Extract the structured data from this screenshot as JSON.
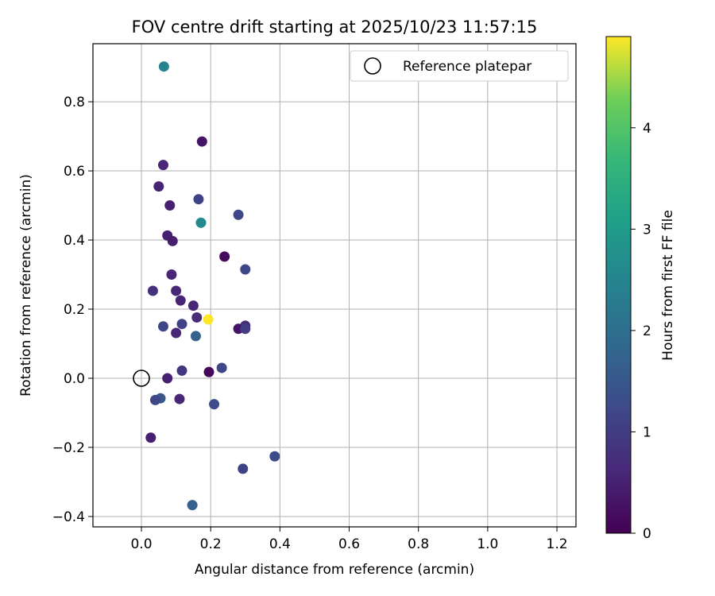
{
  "chart_data": {
    "type": "scatter",
    "title": "FOV centre drift starting at 2025/10/23 11:57:15",
    "xlabel": "Angular distance from reference (arcmin)",
    "ylabel": "Rotation from reference (arcmin)",
    "xlim": [
      -0.14,
      1.255
    ],
    "ylim": [
      -0.43,
      0.968
    ],
    "xticks": [
      0.0,
      0.2,
      0.4,
      0.6,
      0.8,
      1.0,
      1.2
    ],
    "xtick_labels": [
      "0.0",
      "0.2",
      "0.4",
      "0.6",
      "0.8",
      "1.0",
      "1.2"
    ],
    "yticks": [
      -0.4,
      -0.2,
      0.0,
      0.2,
      0.4,
      0.6,
      0.8
    ],
    "ytick_labels": [
      "−0.4",
      "−0.2",
      "0.0",
      "0.2",
      "0.4",
      "0.6",
      "0.8"
    ],
    "grid": true,
    "legend": {
      "location": "top-right",
      "entries": [
        "Reference platepar"
      ]
    },
    "reference_point": {
      "x": 0.0,
      "y": 0.0,
      "label": "Reference platepar"
    },
    "colorbar": {
      "label": "Hours from first FF file",
      "colormap": "viridis",
      "range": [
        0,
        4.9
      ],
      "ticks": [
        0,
        1,
        2,
        3,
        4
      ],
      "tick_labels": [
        "0",
        "1",
        "2",
        "3",
        "4"
      ]
    },
    "points": [
      {
        "x": 0.065,
        "y": 0.902,
        "c": 2.5
      },
      {
        "x": 0.175,
        "y": 0.685,
        "c": 0.3
      },
      {
        "x": 0.063,
        "y": 0.617,
        "c": 0.6
      },
      {
        "x": 0.05,
        "y": 0.555,
        "c": 0.55
      },
      {
        "x": 0.165,
        "y": 0.518,
        "c": 1.1
      },
      {
        "x": 0.082,
        "y": 0.5,
        "c": 0.5
      },
      {
        "x": 0.172,
        "y": 0.45,
        "c": 2.6
      },
      {
        "x": 0.28,
        "y": 0.473,
        "c": 1.2
      },
      {
        "x": 0.075,
        "y": 0.413,
        "c": 0.5
      },
      {
        "x": 0.09,
        "y": 0.397,
        "c": 0.45
      },
      {
        "x": 0.24,
        "y": 0.352,
        "c": 0.15
      },
      {
        "x": 0.3,
        "y": 0.315,
        "c": 1.2
      },
      {
        "x": 0.087,
        "y": 0.3,
        "c": 0.6
      },
      {
        "x": 0.033,
        "y": 0.253,
        "c": 0.8
      },
      {
        "x": 0.1,
        "y": 0.253,
        "c": 0.6
      },
      {
        "x": 0.113,
        "y": 0.225,
        "c": 0.55
      },
      {
        "x": 0.15,
        "y": 0.21,
        "c": 0.6
      },
      {
        "x": 0.16,
        "y": 0.176,
        "c": 0.7
      },
      {
        "x": 0.193,
        "y": 0.17,
        "c": 4.9
      },
      {
        "x": 0.063,
        "y": 0.15,
        "c": 1.2
      },
      {
        "x": 0.117,
        "y": 0.157,
        "c": 1.1
      },
      {
        "x": 0.3,
        "y": 0.152,
        "c": 0.7
      },
      {
        "x": 0.28,
        "y": 0.143,
        "c": 0.3
      },
      {
        "x": 0.3,
        "y": 0.143,
        "c": 1.0
      },
      {
        "x": 0.1,
        "y": 0.131,
        "c": 0.6
      },
      {
        "x": 0.157,
        "y": 0.122,
        "c": 1.7
      },
      {
        "x": 0.232,
        "y": 0.03,
        "c": 1.2
      },
      {
        "x": 0.117,
        "y": 0.022,
        "c": 0.9
      },
      {
        "x": 0.195,
        "y": 0.018,
        "c": 0.1
      },
      {
        "x": 0.075,
        "y": 0.0,
        "c": 0.5
      },
      {
        "x": 0.055,
        "y": -0.058,
        "c": 1.5
      },
      {
        "x": 0.04,
        "y": -0.063,
        "c": 1.2
      },
      {
        "x": 0.11,
        "y": -0.06,
        "c": 0.6
      },
      {
        "x": 0.21,
        "y": -0.075,
        "c": 1.3
      },
      {
        "x": 0.027,
        "y": -0.172,
        "c": 0.5
      },
      {
        "x": 0.385,
        "y": -0.226,
        "c": 1.3
      },
      {
        "x": 0.293,
        "y": -0.262,
        "c": 1.1
      },
      {
        "x": 0.147,
        "y": -0.367,
        "c": 1.7
      }
    ]
  }
}
